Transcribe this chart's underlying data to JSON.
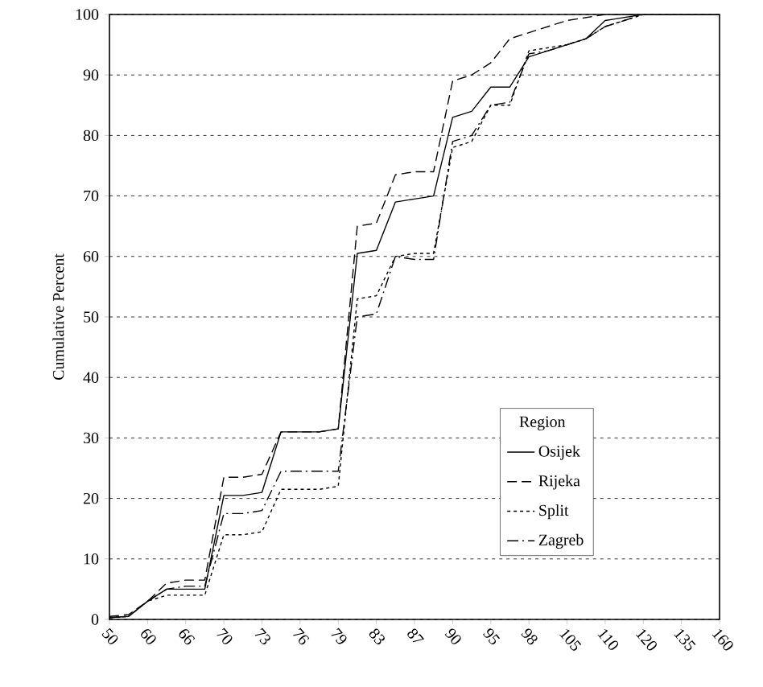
{
  "chart_data": {
    "type": "line",
    "ylabel": "Cumulative Percent",
    "legend_title": "Region",
    "categories": [
      "50",
      null,
      "60",
      null,
      "66",
      null,
      "70",
      null,
      "73",
      null,
      "76",
      null,
      "79",
      null,
      "83",
      null,
      "87",
      null,
      "90",
      null,
      "95",
      null,
      "98",
      null,
      "105",
      null,
      "110",
      null,
      "120",
      null,
      "135",
      null,
      "160"
    ],
    "series": [
      {
        "name": "Osijek",
        "color": "#000000",
        "line_style": "solid",
        "values": [
          0.3,
          0.5,
          3,
          5,
          5,
          5,
          20.5,
          20.5,
          21,
          31,
          31,
          31,
          31.5,
          60.5,
          61,
          69,
          69.5,
          70,
          83,
          84,
          88,
          88,
          93,
          94,
          95,
          96,
          99,
          99.5,
          100,
          100,
          100,
          100,
          100
        ]
      },
      {
        "name": "Rijeka",
        "color": "#000000",
        "line_style": "dashed",
        "values": [
          0.5,
          0.8,
          3,
          6,
          6.5,
          6.5,
          23.5,
          23.5,
          24,
          31,
          31,
          31,
          31.5,
          65,
          65.5,
          73.5,
          74,
          74,
          89,
          90,
          92,
          96,
          97,
          98,
          99,
          99.5,
          100,
          100,
          100,
          100,
          100,
          100,
          100
        ]
      },
      {
        "name": "Split",
        "color": "#000000",
        "line_style": "dotted",
        "values": [
          0.3,
          0.5,
          3,
          4,
          4,
          4,
          14,
          14,
          14.5,
          21.5,
          21.5,
          21.5,
          22,
          53,
          53.5,
          60,
          60.5,
          60.5,
          78,
          79,
          85,
          85,
          94,
          94.5,
          95,
          96,
          98,
          99,
          100,
          100,
          100,
          100,
          100
        ]
      },
      {
        "name": "Zagreb",
        "color": "#000000",
        "line_style": "dashdot",
        "values": [
          0.3,
          0.5,
          3,
          5,
          5.5,
          5.5,
          17.5,
          17.5,
          18,
          24.5,
          24.5,
          24.5,
          24.5,
          50,
          50.5,
          60,
          59.5,
          59.5,
          79,
          80,
          85,
          85.5,
          93.5,
          94,
          95,
          96,
          98,
          99,
          100,
          100,
          100,
          100,
          100
        ]
      }
    ],
    "ylim": [
      0,
      100
    ],
    "yticks": [
      0,
      10,
      20,
      30,
      40,
      50,
      60,
      70,
      80,
      90,
      100
    ],
    "grid": "y",
    "legend": "bottom right",
    "marker": "none"
  }
}
